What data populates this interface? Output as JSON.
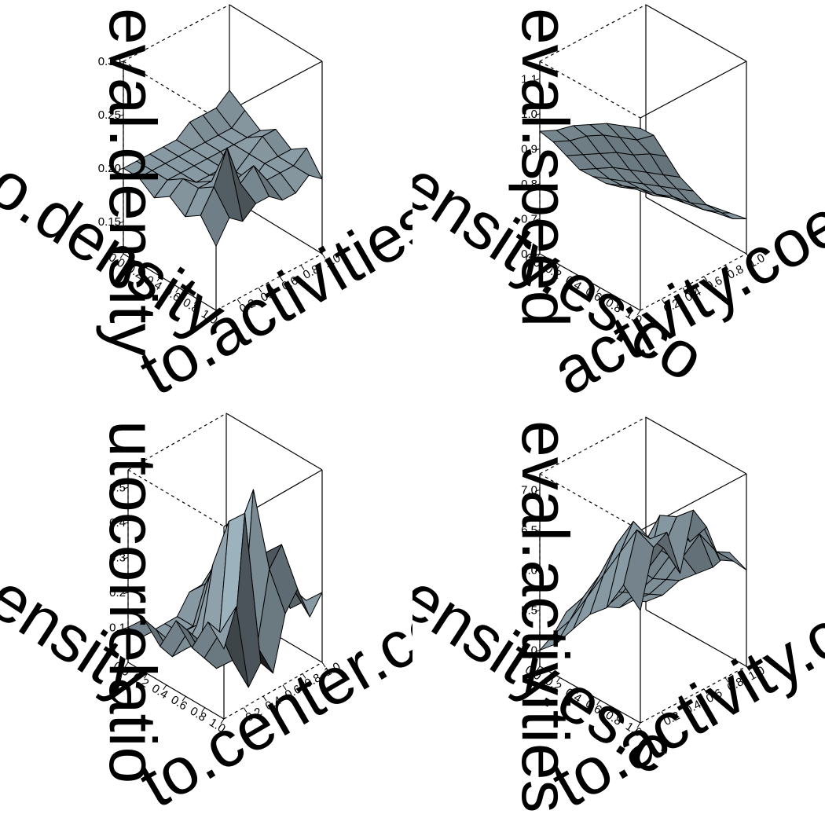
{
  "chart_data": [
    {
      "type": "surface3d",
      "zlabel": "eval.density",
      "xlabel": "to.activities.co",
      "ylabel": "o.density",
      "x_ticks": [
        "0.2",
        "0.4",
        "0.6",
        "0.8",
        "1.0"
      ],
      "y_ticks": [
        "0.0",
        "0.2",
        "0.4",
        "0.6",
        "0.8",
        "1.0"
      ],
      "z_ticks": [
        "0.30",
        "0.25",
        "0.20",
        "0.15"
      ],
      "zlim": [
        0.12,
        0.3
      ],
      "z": [
        [
          0.18,
          0.2,
          0.19,
          0.2,
          0.2,
          0.19,
          0.19,
          0.2,
          0.19
        ],
        [
          0.2,
          0.22,
          0.25,
          0.21,
          0.22,
          0.2,
          0.2,
          0.2,
          0.21
        ],
        [
          0.19,
          0.21,
          0.21,
          0.21,
          0.2,
          0.19,
          0.2,
          0.2,
          0.2
        ],
        [
          0.2,
          0.21,
          0.2,
          0.2,
          0.2,
          0.19,
          0.2,
          0.21,
          0.21
        ],
        [
          0.19,
          0.2,
          0.2,
          0.2,
          0.2,
          0.2,
          0.2,
          0.2,
          0.2
        ],
        [
          0.2,
          0.2,
          0.2,
          0.2,
          0.2,
          0.2,
          0.2,
          0.2,
          0.21
        ],
        [
          0.2,
          0.2,
          0.2,
          0.2,
          0.2,
          0.21,
          0.21,
          0.21,
          0.22
        ]
      ]
    },
    {
      "type": "surface3d",
      "zlabel": "eval.speed",
      "xlabel": "activity.coeffi",
      "ylabel": "ensity.es.co",
      "x_ticks": [
        "0.2",
        "0.4",
        "0.6",
        "0.8",
        "1.0"
      ],
      "y_ticks": [
        "0.0",
        "0.2",
        "0.4",
        "0.6",
        "0.8",
        "1.0"
      ],
      "z_ticks": [
        "1.1",
        "1.0",
        "0.9",
        "0.8",
        "0.7",
        "0.6"
      ],
      "zlim": [
        0.6,
        1.15
      ],
      "z": [
        [
          1.12,
          1.08,
          1.0,
          0.92,
          0.86,
          0.8,
          0.76,
          0.72,
          0.7
        ],
        [
          1.1,
          1.04,
          0.98,
          0.9,
          0.84,
          0.78,
          0.74,
          0.71,
          0.69
        ],
        [
          1.08,
          1.02,
          0.95,
          0.88,
          0.82,
          0.77,
          0.73,
          0.7,
          0.68
        ],
        [
          1.05,
          1.0,
          0.93,
          0.86,
          0.8,
          0.75,
          0.72,
          0.69,
          0.67
        ],
        [
          1.02,
          0.97,
          0.9,
          0.84,
          0.78,
          0.74,
          0.7,
          0.68,
          0.66
        ],
        [
          0.98,
          0.93,
          0.87,
          0.81,
          0.76,
          0.72,
          0.69,
          0.67,
          0.65
        ],
        [
          0.95,
          0.9,
          0.84,
          0.78,
          0.74,
          0.7,
          0.67,
          0.65,
          0.64
        ]
      ]
    },
    {
      "type": "surface3d",
      "zlabel": "utocorrelatio",
      "xlabel": "to.center.coeffic",
      "ylabel": "ensity",
      "x_ticks": [
        "0.2",
        "0.4",
        "0.6",
        "0.8",
        "1.0"
      ],
      "y_ticks": [
        "0.0",
        "0.2",
        "0.4",
        "0.6",
        "0.8",
        "1.0"
      ],
      "z_ticks": [
        "0.5",
        "0.4",
        "0.3",
        "0.2",
        "0.1"
      ],
      "zlim": [
        0.0,
        0.55
      ],
      "z": [
        [
          0.2,
          0.3,
          0.05,
          0.1,
          0.05,
          0.2,
          0.25,
          0.15,
          0.2
        ],
        [
          0.25,
          0.2,
          0.1,
          0.5,
          0.1,
          0.3,
          0.35,
          0.2,
          0.15
        ],
        [
          0.15,
          0.1,
          0.05,
          0.45,
          0.05,
          0.5,
          0.3,
          0.25,
          0.1
        ],
        [
          0.2,
          0.15,
          0.1,
          0.3,
          0.05,
          0.35,
          0.4,
          0.2,
          0.15
        ],
        [
          0.1,
          0.05,
          0.05,
          0.1,
          0.05,
          0.25,
          0.3,
          0.15,
          0.1
        ],
        [
          0.15,
          0.1,
          0.05,
          0.05,
          0.05,
          0.15,
          0.2,
          0.1,
          0.05
        ],
        [
          0.1,
          0.05,
          0.05,
          0.05,
          0.05,
          0.1,
          0.1,
          0.05,
          0.05
        ]
      ]
    },
    {
      "type": "surface3d",
      "zlabel": "eval.activities",
      "xlabel": "to.activity.coeffic",
      "ylabel": "ensity.es.c",
      "x_ticks": [
        "0.2",
        "0.4",
        "0.6",
        "0.8",
        "1.0"
      ],
      "y_ticks": [
        "0.0",
        "0.2",
        "0.4",
        "0.6",
        "0.8",
        "1.0"
      ],
      "z_ticks": [
        "7.0",
        "6.5",
        "6.0",
        "5.5",
        "5.0"
      ],
      "zlim": [
        4.8,
        7.2
      ],
      "z": [
        [
          6.2,
          6.9,
          7.0,
          6.4,
          7.1,
          6.8,
          6.3,
          6.2,
          6.0
        ],
        [
          6.4,
          7.0,
          6.8,
          6.6,
          6.9,
          6.5,
          6.6,
          6.2,
          6.1
        ],
        [
          6.0,
          6.6,
          6.9,
          6.2,
          6.8,
          6.6,
          6.4,
          6.3,
          5.8
        ],
        [
          5.8,
          6.2,
          6.5,
          6.0,
          6.3,
          6.2,
          6.0,
          5.9,
          5.6
        ],
        [
          5.5,
          5.8,
          6.0,
          5.7,
          5.9,
          5.8,
          5.6,
          5.5,
          5.4
        ],
        [
          5.2,
          5.4,
          5.6,
          5.4,
          5.5,
          5.4,
          5.3,
          5.2,
          5.1
        ],
        [
          5.0,
          5.1,
          5.3,
          5.1,
          5.2,
          5.1,
          5.0,
          5.0,
          4.9
        ]
      ]
    }
  ]
}
